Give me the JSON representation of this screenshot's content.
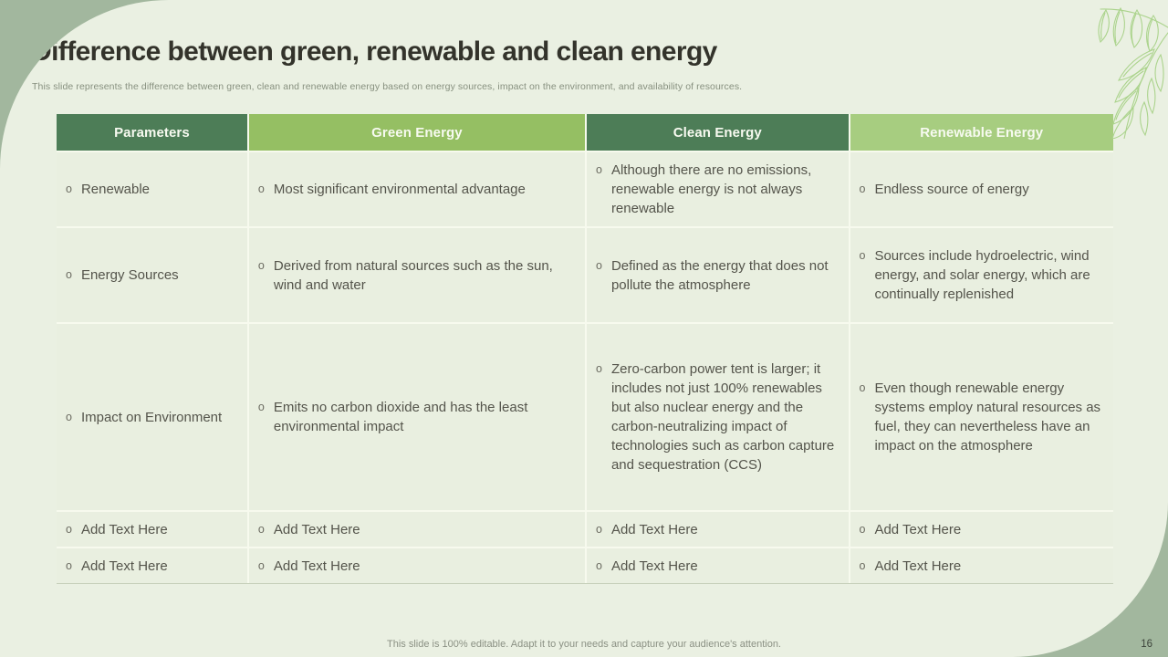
{
  "slide": {
    "title": "Difference between green, renewable and clean energy",
    "subtitle": "This slide represents the difference between green, clean and renewable energy based on energy sources, impact on the environment, and availability of resources.",
    "footer": "This slide is 100% editable. Adapt it to your needs and capture your audience's attention.",
    "page_number": "16"
  },
  "colors": {
    "canvas-bg": "#a2b79e",
    "slide-bg": "#eaf0e2",
    "header-dark": "#4d7d57",
    "header-green": "#95bf63",
    "header-light": "#a7cd80",
    "header-text": "#f7faf0",
    "cell-bg": "#e9efe0",
    "grid-line": "#f7faee",
    "leaf-stroke": "#abd38c"
  },
  "table": {
    "bullet": "o",
    "headers": [
      {
        "label": "Parameters",
        "style": "dark"
      },
      {
        "label": "Green Energy",
        "style": "green"
      },
      {
        "label": "Clean Energy",
        "style": "dark"
      },
      {
        "label": "Renewable Energy",
        "style": "light"
      }
    ],
    "rows": [
      [
        "Renewable",
        "Most significant environmental advantage",
        "Although there are no emissions, renewable energy is not always renewable",
        "Endless source of energy"
      ],
      [
        "Energy Sources",
        "Derived from natural sources such as the sun, wind and water",
        "Defined as the energy that does not pollute the atmosphere",
        "Sources include hydroelectric, wind energy, and solar energy, which are continually replenished"
      ],
      [
        "Impact on Environment",
        "Emits no carbon dioxide and has the least environmental impact",
        "Zero-carbon power tent is larger; it includes not just 100% renewables but also nuclear energy and the carbon-neutralizing impact of technologies such as carbon capture and sequestration (CCS)",
        "Even though renewable energy systems employ natural resources as fuel, they can nevertheless have an impact on the atmosphere"
      ],
      [
        "Add Text Here",
        "Add Text Here",
        "Add Text Here",
        "Add Text Here"
      ],
      [
        "Add Text Here",
        "Add Text Here",
        "Add Text Here",
        "Add Text Here"
      ]
    ]
  }
}
